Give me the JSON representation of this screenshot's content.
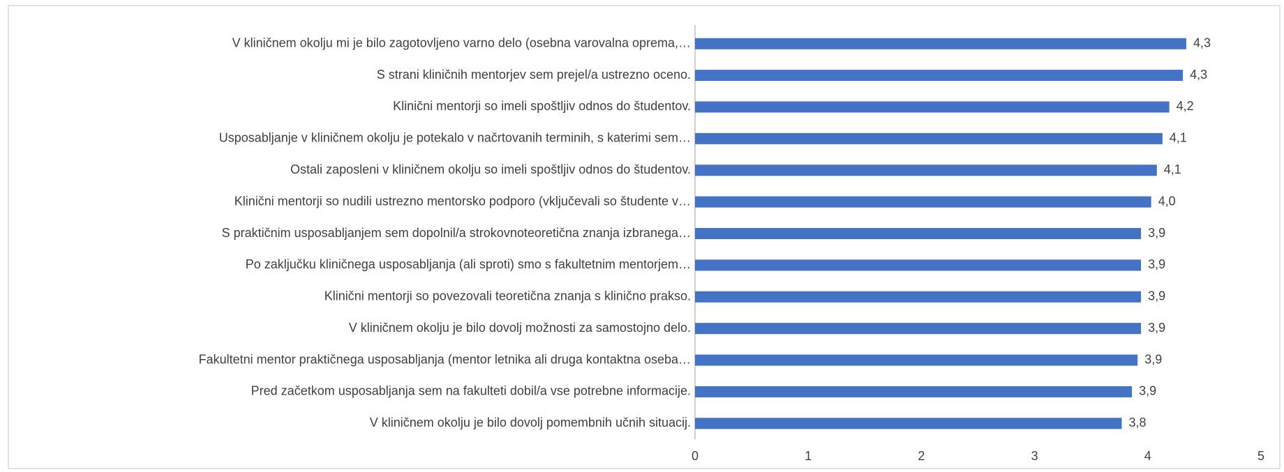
{
  "chart_data": {
    "type": "bar",
    "orientation": "horizontal",
    "categories": [
      "V kliničnem okolju mi je bilo zagotovljeno varno delo (osebna varovalna oprema,…",
      "S strani kliničnih mentorjev sem prejel/a ustrezno oceno.",
      "Klinični mentorji so imeli spoštljiv odnos do študentov.",
      "Usposabljanje v kliničnem okolju je potekalo v načrtovanih terminih, s katerimi sem…",
      "Ostali zaposleni v kliničnem okolju so imeli spoštljiv odnos do študentov.",
      "Klinični mentorji so nudili ustrezno mentorsko podporo (vključevali so študente v…",
      "S praktičnim usposabljanjem sem dopolnil/a strokovnoteoretična znanja izbranega…",
      "Po zaključku kliničnega usposabljanja (ali sproti) smo s fakultetnim mentorjem…",
      "Klinični mentorji so povezovali teoretična znanja s klinično prakso.",
      "V kliničnem okolju je bilo dovolj možnosti za samostojno delo.",
      "Fakultetni mentor praktičnega usposabljanja (mentor letnika ali druga kontaktna oseba…",
      "Pred začetkom usposabljanja sem na fakulteti dobil/a vse potrebne informacije.",
      "V kliničnem okolju je bilo dovolj pomembnih učnih situacij."
    ],
    "values": [
      4.34,
      4.31,
      4.19,
      4.13,
      4.08,
      4.03,
      3.94,
      3.94,
      3.94,
      3.94,
      3.91,
      3.86,
      3.77
    ],
    "value_labels": [
      "4,3",
      "4,3",
      "4,2",
      "4,1",
      "4,1",
      "4,0",
      "3,9",
      "3,9",
      "3,9",
      "3,9",
      "3,9",
      "3,9",
      "3,8"
    ],
    "color": "#4472c4",
    "xlim": [
      0,
      5
    ],
    "xticks": [
      0,
      1,
      2,
      3,
      4,
      5
    ],
    "grid": false
  }
}
